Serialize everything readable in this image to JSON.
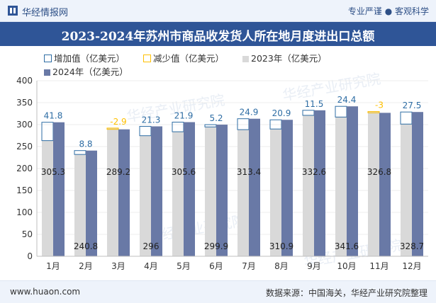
{
  "header": {
    "brand": "华经情报网",
    "slogan": "专业严谨 ● 客观科学"
  },
  "footer": {
    "site": "www.huaon.com",
    "source": "数据来源：中国海关，华经产业研究院整理"
  },
  "watermark": "华经产业研究院",
  "colors": {
    "bar2023": "#d9d9d9",
    "bar2024": "#6979a6",
    "increase_border": "#2e6da4",
    "decrease_border": "#ffc000",
    "increase_label": "#2e6da4",
    "decrease_label": "#ffc000",
    "title_bg": "#2f5597"
  },
  "chart_data": {
    "type": "bar",
    "title": "2023-2024年苏州市商品收发货人所在地月度进出口总额",
    "categories": [
      "1月",
      "2月",
      "3月",
      "4月",
      "5月",
      "6月",
      "7月",
      "8月",
      "9月",
      "10月",
      "11月",
      "12月"
    ],
    "series": [
      {
        "name": "2023年（亿美元）",
        "values": [
          263.5,
          232.0,
          292.1,
          274.7,
          283.7,
          294.7,
          288.5,
          290.0,
          321.1,
          317.2,
          329.8,
          301.2
        ]
      },
      {
        "name": "2024年（亿美元）",
        "values": [
          305.3,
          240.8,
          289.2,
          296,
          305.6,
          299.9,
          313.4,
          310.9,
          332.6,
          341.6,
          326.8,
          328.7
        ]
      }
    ],
    "change_series": [
      {
        "name": "增加值（亿美元）"
      },
      {
        "name": "减少值（亿美元）"
      }
    ],
    "change_values": [
      "41.8",
      "8.8",
      "-2.9",
      "21.3",
      "21.9",
      "5.2",
      "24.9",
      "20.9",
      "11.5",
      "24.4",
      "-3",
      "27.5"
    ],
    "value_labels": [
      "305.3",
      "240.8",
      "289.2",
      "296",
      "305.6",
      "299.9",
      "313.4",
      "310.9",
      "332.6",
      "341.6",
      "326.8",
      "328.7"
    ],
    "ylim": [
      0,
      400
    ],
    "yticks": [
      0,
      50,
      100,
      150,
      200,
      250,
      300,
      350,
      400
    ],
    "legend_position": "top"
  }
}
